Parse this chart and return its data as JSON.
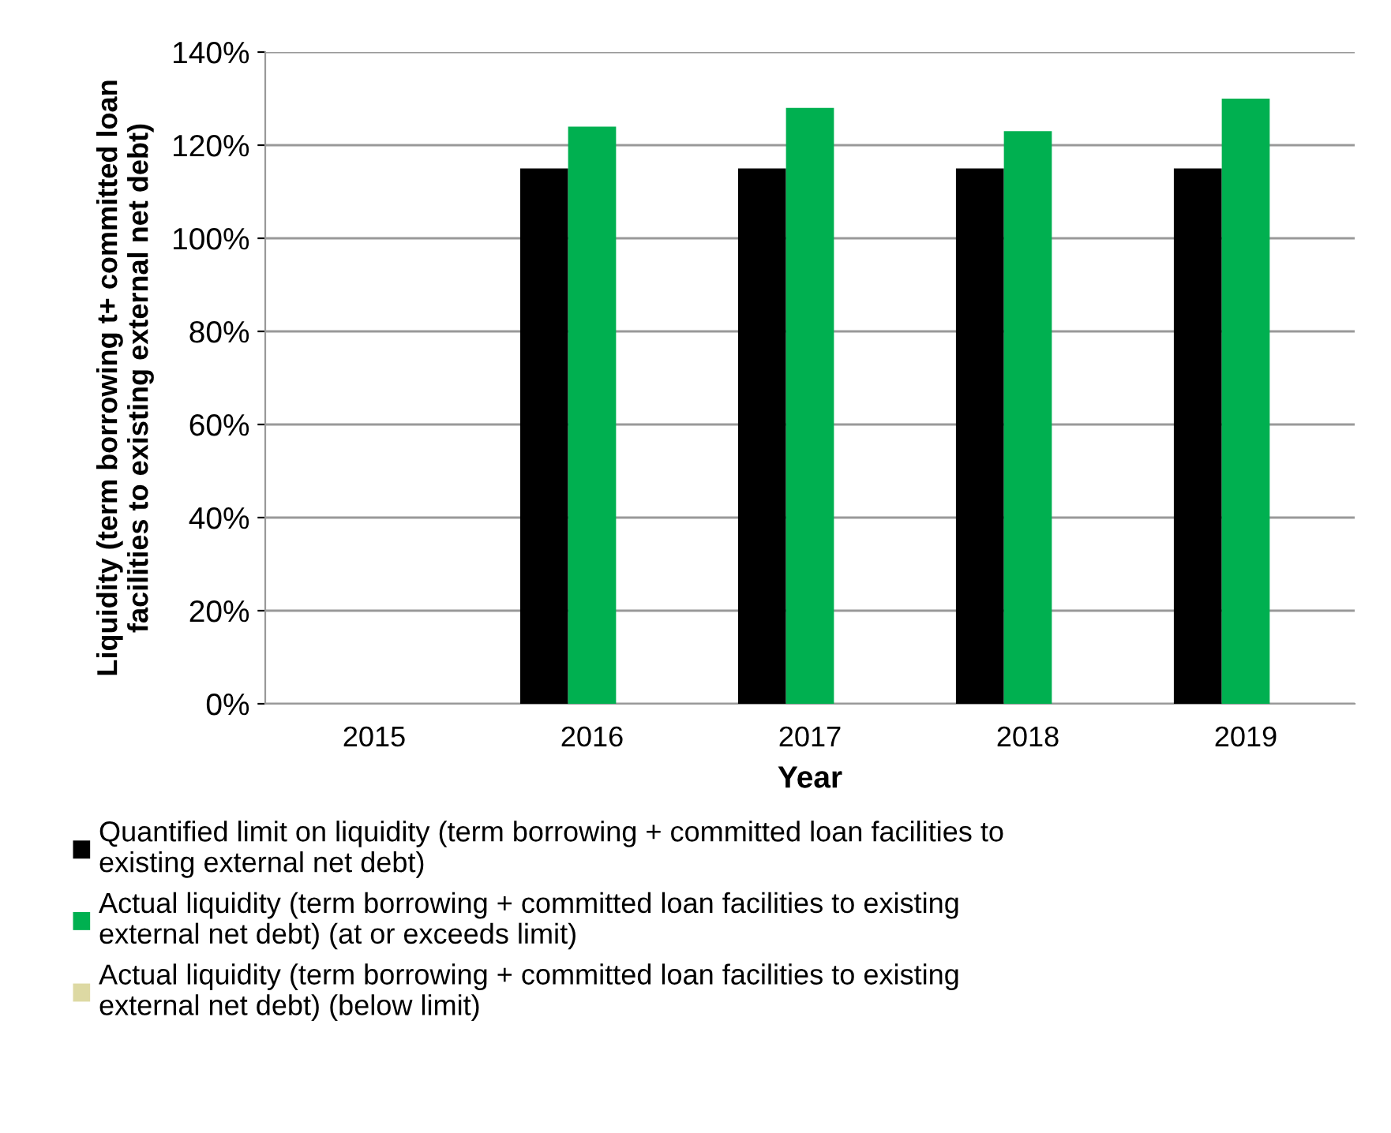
{
  "chart_data": {
    "type": "bar",
    "xlabel": "Year",
    "ylabel": "Liquidity (term borrowing t+ committed loan\nfacilities to existing external net debt)",
    "categories": [
      "2015",
      "2016",
      "2017",
      "2018",
      "2019"
    ],
    "series": [
      {
        "name": "Quantified limit on liquidity (term borrowing + committed loan facilities to\nexisting external net debt)",
        "color": "#000000",
        "values": [
          null,
          115,
          115,
          115,
          115
        ]
      },
      {
        "name": "Actual liquidity (term borrowing + committed loan facilities to existing\nexternal net debt) (at or exceeds limit)",
        "color": "#00b050",
        "values": [
          null,
          124,
          128,
          123,
          130
        ]
      },
      {
        "name": "Actual liquidity (term borrowing + committed loan facilities to existing\nexternal net debt) (below limit)",
        "color": "#ddd9a3",
        "values": [
          null,
          null,
          null,
          null,
          null
        ]
      }
    ],
    "ylim": [
      0,
      140
    ],
    "yticks": [
      {
        "value": 0,
        "label": "0%"
      },
      {
        "value": 20,
        "label": "20%"
      },
      {
        "value": 40,
        "label": "40%"
      },
      {
        "value": 60,
        "label": "60%"
      },
      {
        "value": 80,
        "label": "80%"
      },
      {
        "value": 100,
        "label": "100%"
      },
      {
        "value": 120,
        "label": "120%"
      },
      {
        "value": 140,
        "label": "140%"
      }
    ],
    "grid": "y",
    "legend": "bottom"
  }
}
